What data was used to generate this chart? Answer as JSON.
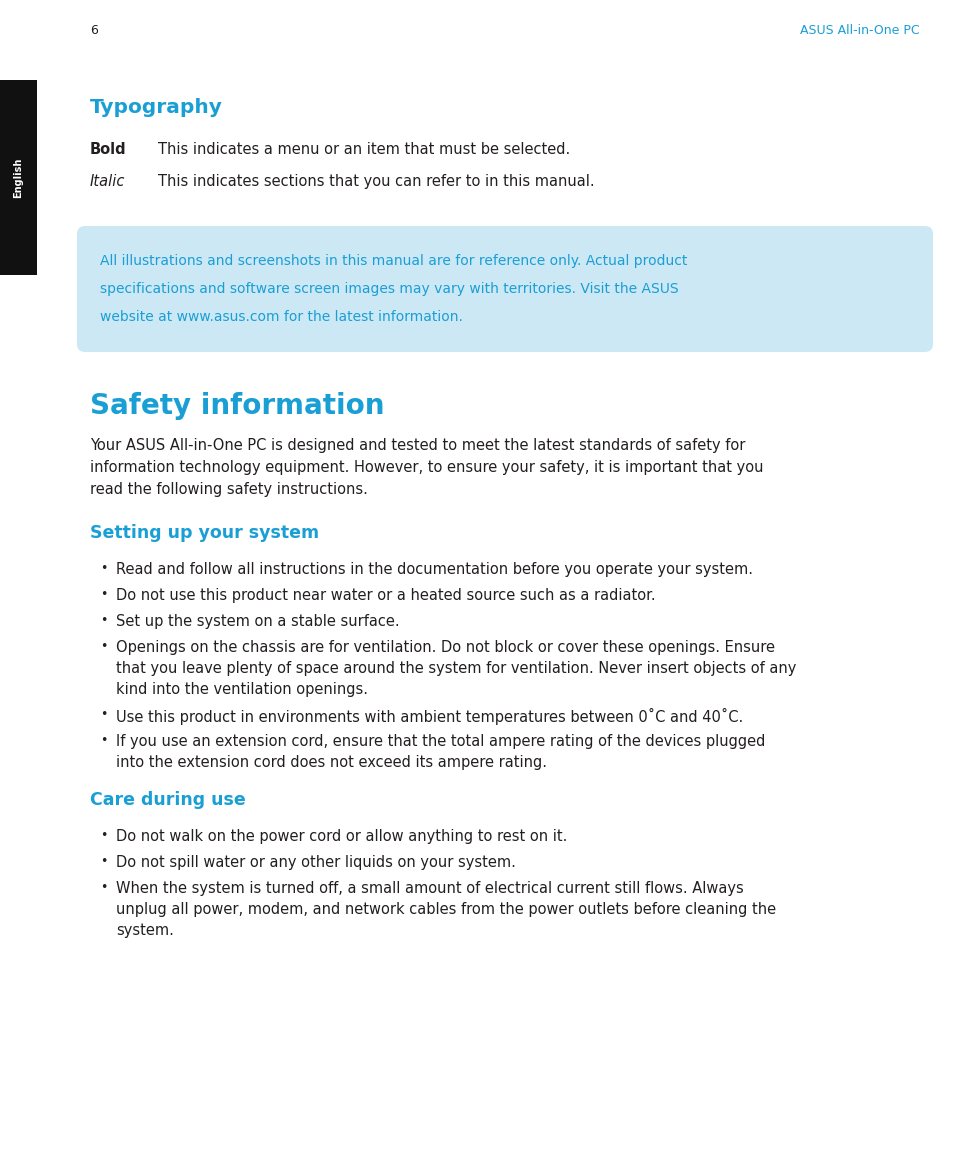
{
  "bg_color": "#ffffff",
  "sidebar_color": "#111111",
  "sidebar_text": "English",
  "sidebar_text_color": "#ffffff",
  "accent_color": "#1a9fd4",
  "body_text_color": "#231f20",
  "note_box_bg": "#cde8f5",
  "note_box_text_color": "#1a9fd4",
  "typography_title": "Typography",
  "bold_label": "Bold",
  "bold_desc": "This indicates a menu or an item that must be selected.",
  "italic_label": "Italic",
  "italic_desc": "This indicates sections that you can refer to in this manual.",
  "note_line1": "All illustrations and screenshots in this manual are for reference only. Actual product",
  "note_line2": "specifications and software screen images may vary with territories. Visit the ASUS",
  "note_line3": "website at www.asus.com for the latest information.",
  "safety_title": "Safety information",
  "safety_line1": "Your ASUS All-in-One PC is designed and tested to meet the latest standards of safety for",
  "safety_line2": "information technology equipment. However, to ensure your safety, it is important that you",
  "safety_line3": "read the following safety instructions.",
  "setup_title": "Setting up your system",
  "setup_bullets": [
    [
      "Read and follow all instructions in the documentation before you operate your system."
    ],
    [
      "Do not use this product near water or a heated source such as a radiator."
    ],
    [
      "Set up the system on a stable surface."
    ],
    [
      "Openings on the chassis are for ventilation. Do not block or cover these openings. Ensure",
      "that you leave plenty of space around the system for ventilation. Never insert objects of any",
      "kind into the ventilation openings."
    ],
    [
      "Use this product in environments with ambient temperatures between 0˚C and 40˚C."
    ],
    [
      "If you use an extension cord, ensure that the total ampere rating of the devices plugged",
      "into the extension cord does not exceed its ampere rating."
    ]
  ],
  "care_title": "Care during use",
  "care_bullets": [
    [
      "Do not walk on the power cord or allow anything to rest on it."
    ],
    [
      "Do not spill water or any other liquids on your system."
    ],
    [
      "When the system is turned off, a small amount of electrical current still flows. Always",
      "unplug all power, modem, and network cables from the power outlets before cleaning the",
      "system."
    ]
  ],
  "footer_page": "6",
  "footer_right": "ASUS All-in-One PC",
  "dpi": 100,
  "fig_w": 9.54,
  "fig_h": 11.55
}
